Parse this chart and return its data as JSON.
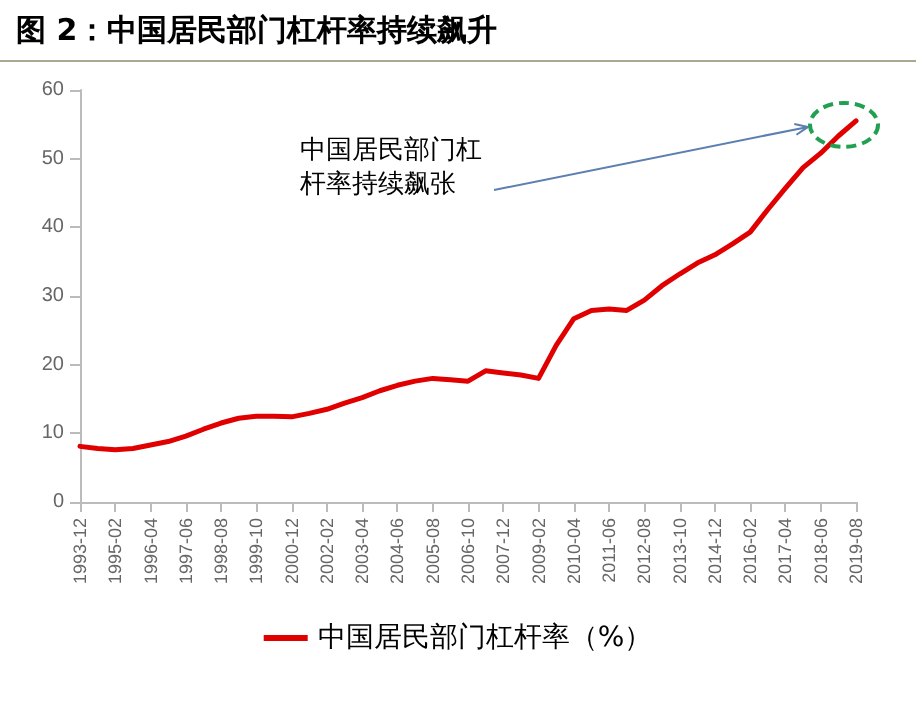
{
  "chart_data": {
    "type": "line",
    "title": "图 2：中国居民部门杠杆率持续飙升",
    "categories": [
      "1993-12",
      null,
      "1995-02",
      null,
      "1996-04",
      null,
      "1997-06",
      null,
      "1998-08",
      null,
      "1999-10",
      null,
      "2000-12",
      null,
      "2002-02",
      null,
      "2003-04",
      null,
      "2004-06",
      null,
      "2005-08",
      null,
      "2006-10",
      null,
      "2007-12",
      null,
      "2009-02",
      null,
      "2010-04",
      null,
      "2011-06",
      null,
      "2012-08",
      null,
      "2013-10",
      null,
      "2014-12",
      null,
      "2016-02",
      null,
      "2017-04",
      null,
      "2018-06",
      null,
      "2019-08"
    ],
    "series": [
      {
        "name": "中国居民部门杠杆率（%）",
        "color": "#e00000",
        "values": [
          8.1,
          7.8,
          7.6,
          7.8,
          8.3,
          8.8,
          9.6,
          10.6,
          11.5,
          12.2,
          12.5,
          12.5,
          12.4,
          12.9,
          13.5,
          14.4,
          15.2,
          16.2,
          17.0,
          17.6,
          18.0,
          17.8,
          17.6,
          19.1,
          18.8,
          18.5,
          18.0,
          22.8,
          26.7,
          27.9,
          28.1,
          27.9,
          29.4,
          31.5,
          33.2,
          34.8,
          36.0,
          37.6,
          39.3,
          42.6,
          45.7,
          48.7,
          50.8,
          53.3,
          55.5
        ]
      }
    ],
    "ylim": [
      0,
      60
    ],
    "yticks": [
      0,
      10,
      20,
      30,
      40,
      50,
      60
    ],
    "grid": false,
    "legend": "bottom",
    "marker": "none",
    "line_style": "solid",
    "annotations": [
      "中国居民部门杠杆率持续飙张"
    ]
  }
}
